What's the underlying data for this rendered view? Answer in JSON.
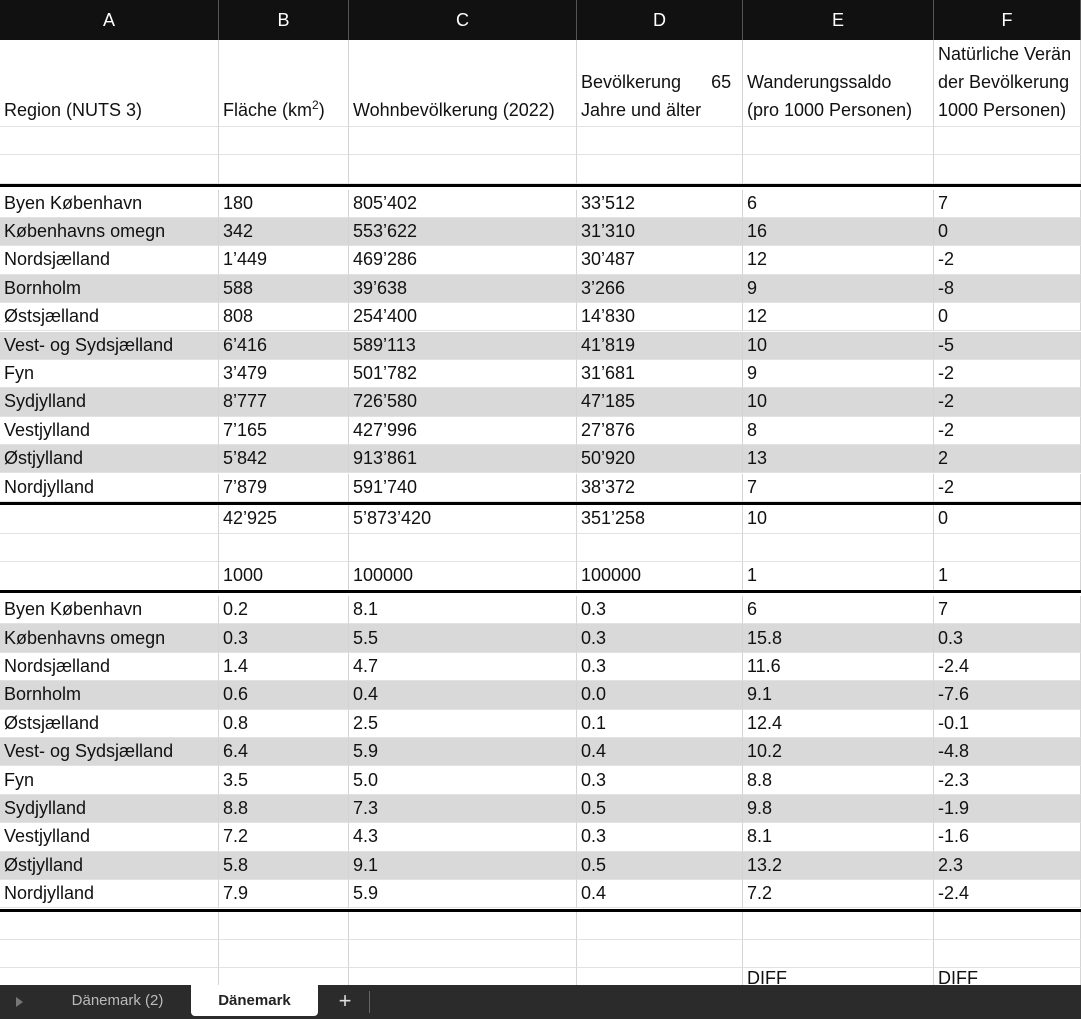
{
  "columns": [
    "A",
    "B",
    "C",
    "D",
    "E",
    "F"
  ],
  "header": [
    {
      "lines": [
        "Region (NUTS 3)"
      ]
    },
    {
      "lines": [
        "Fläche (km"
      ],
      "sup": "2",
      "tail": ")"
    },
    {
      "lines": [
        "Wohnbevölkerung (2022)"
      ]
    },
    {
      "lines": [
        "Bevölkerung      65",
        "Jahre und älter"
      ]
    },
    {
      "lines": [
        "Wanderungssaldo",
        "(pro 1000 Personen)"
      ]
    },
    {
      "lines": [
        "Natürliche Verän",
        "der Bevölkerung",
        "1000 Personen)"
      ]
    }
  ],
  "table1": [
    [
      "Byen København",
      "180",
      "805’402",
      "33’512",
      "6",
      "7"
    ],
    [
      "Københavns omegn",
      "342",
      "553’622",
      "31’310",
      "16",
      "0"
    ],
    [
      "Nordsjælland",
      "1’449",
      "469’286",
      "30’487",
      "12",
      "-2"
    ],
    [
      "Bornholm",
      "588",
      "39’638",
      "3’266",
      "9",
      "-8"
    ],
    [
      "Østsjælland",
      "808",
      "254’400",
      "14’830",
      "12",
      "0"
    ],
    [
      "Vest- og Sydsjælland",
      "6’416",
      "589’113",
      "41’819",
      "10",
      "-5"
    ],
    [
      "Fyn",
      "3’479",
      "501’782",
      "31’681",
      "9",
      "-2"
    ],
    [
      "Sydjylland",
      "8’777",
      "726’580",
      "47’185",
      "10",
      "-2"
    ],
    [
      "Vestjylland",
      "7’165",
      "427’996",
      "27’876",
      "8",
      "-2"
    ],
    [
      "Østjylland",
      "5’842",
      "913’861",
      "50’920",
      "13",
      "2"
    ],
    [
      "Nordjylland",
      "7’879",
      "591’740",
      "38’372",
      "7",
      "-2"
    ]
  ],
  "totals": [
    "42’925",
    "5’873’420",
    "351’258",
    "10",
    "0"
  ],
  "divisors": [
    "1000",
    "100000",
    "100000",
    "1",
    "1"
  ],
  "table2": [
    [
      "Byen København",
      "0.2",
      "8.1",
      "0.3",
      "6",
      "7"
    ],
    [
      "Københavns omegn",
      "0.3",
      "5.5",
      "0.3",
      "15.8",
      "0.3"
    ],
    [
      "Nordsjælland",
      "1.4",
      "4.7",
      "0.3",
      "11.6",
      "-2.4"
    ],
    [
      "Bornholm",
      "0.6",
      "0.4",
      "0.0",
      "9.1",
      "-7.6"
    ],
    [
      "Østsjælland",
      "0.8",
      "2.5",
      "0.1",
      "12.4",
      "-0.1"
    ],
    [
      "Vest- og Sydsjælland",
      "6.4",
      "5.9",
      "0.4",
      "10.2",
      "-4.8"
    ],
    [
      "Fyn",
      "3.5",
      "5.0",
      "0.3",
      "8.8",
      "-2.3"
    ],
    [
      "Sydjylland",
      "8.8",
      "7.3",
      "0.5",
      "9.8",
      "-1.9"
    ],
    [
      "Vestjylland",
      "7.2",
      "4.3",
      "0.3",
      "8.1",
      "-1.6"
    ],
    [
      "Østjylland",
      "5.8",
      "9.1",
      "0.5",
      "13.2",
      "2.3"
    ],
    [
      "Nordjylland",
      "7.9",
      "5.9",
      "0.4",
      "7.2",
      "-2.4"
    ]
  ],
  "diff": [
    "DIFF",
    "DIFF"
  ],
  "tabs": [
    "Dänemark (2)",
    "Dänemark",
    "+"
  ]
}
